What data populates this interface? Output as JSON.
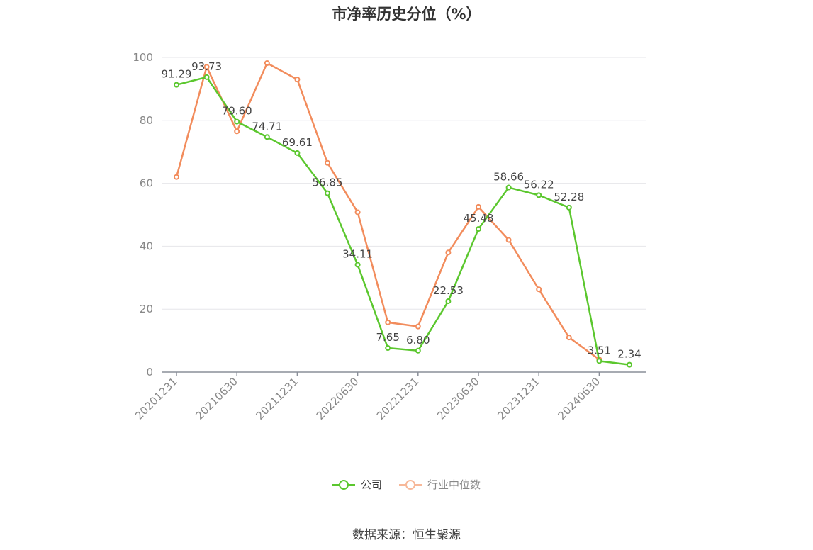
{
  "chart_data": {
    "type": "line",
    "title": "市净率历史分位（%）",
    "x": [
      "20201231",
      "20210331",
      "20210630",
      "20210930",
      "20211231",
      "20220331",
      "20220630",
      "20220930",
      "20221231",
      "20230331",
      "20230630",
      "20230930",
      "20231231",
      "20240331",
      "20240630",
      "20240930"
    ],
    "x_tick_labels": [
      "20201231",
      "20210630",
      "20211231",
      "20220630",
      "20221231",
      "20230630",
      "20231231",
      "20240630"
    ],
    "ylim": [
      0,
      100
    ],
    "y_ticks": [
      0,
      20,
      40,
      60,
      80,
      100
    ],
    "grid": true,
    "legend_position": "bottom-center",
    "series": [
      {
        "name": "公司",
        "color": "#5bc72e",
        "values": [
          91.29,
          93.73,
          79.6,
          74.71,
          69.61,
          56.85,
          34.11,
          7.65,
          6.8,
          22.53,
          45.48,
          58.66,
          56.22,
          52.28,
          3.51,
          2.34
        ],
        "labels": [
          "91.29",
          "93.73",
          "79.60",
          "74.71",
          "69.61",
          "56.85",
          "34.11",
          "7.65",
          "6.80",
          "22.53",
          "45.48",
          "58.66",
          "56.22",
          "52.28",
          "3.51",
          "2.34"
        ]
      },
      {
        "name": "行业中位数",
        "color": "#f28c5c",
        "values": [
          62,
          97,
          76.5,
          98.2,
          93,
          66.5,
          50.8,
          15.8,
          14.5,
          38,
          52.5,
          42,
          26.3,
          11,
          4,
          null
        ]
      }
    ]
  },
  "legend": {
    "company_label": "公司",
    "industry_label": "行业中位数"
  },
  "source_text": "数据来源：恒生聚源"
}
